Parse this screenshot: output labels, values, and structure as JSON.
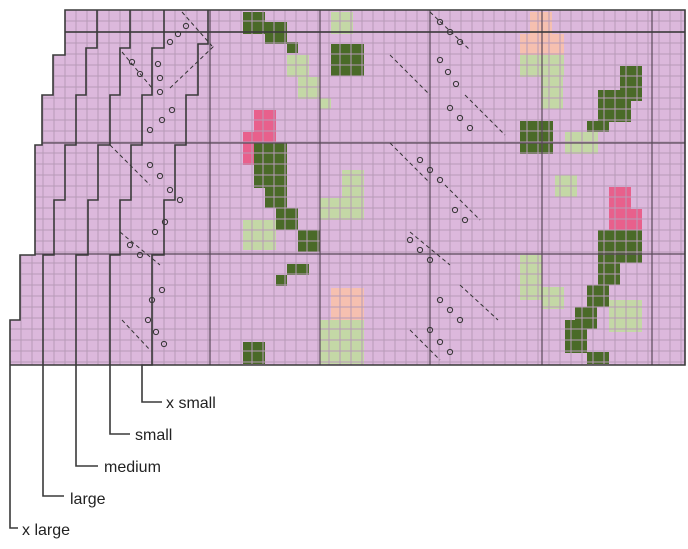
{
  "size_labels": [
    {
      "id": "x-small",
      "text": "x small"
    },
    {
      "id": "small",
      "text": "small"
    },
    {
      "id": "medium",
      "text": "medium"
    },
    {
      "id": "large",
      "text": "large"
    },
    {
      "id": "x-large",
      "text": "x large"
    }
  ],
  "colors": {
    "background": "#dcb8dc",
    "grid_fine": "#b79ab7",
    "grid_major": "#5a4a5a",
    "outline": "#3a3a3a",
    "dark_green": "#4a6a28",
    "light_green": "#c4d8a6",
    "pink": "#e8608c",
    "peach": "#f6c0b0",
    "label_text": "#222222"
  },
  "chart_style": {
    "grid_cell": "fine graph grid",
    "motif": "rosebud with leaves",
    "stitch_symbols": [
      "diagonal dashes",
      "open circles"
    ]
  }
}
